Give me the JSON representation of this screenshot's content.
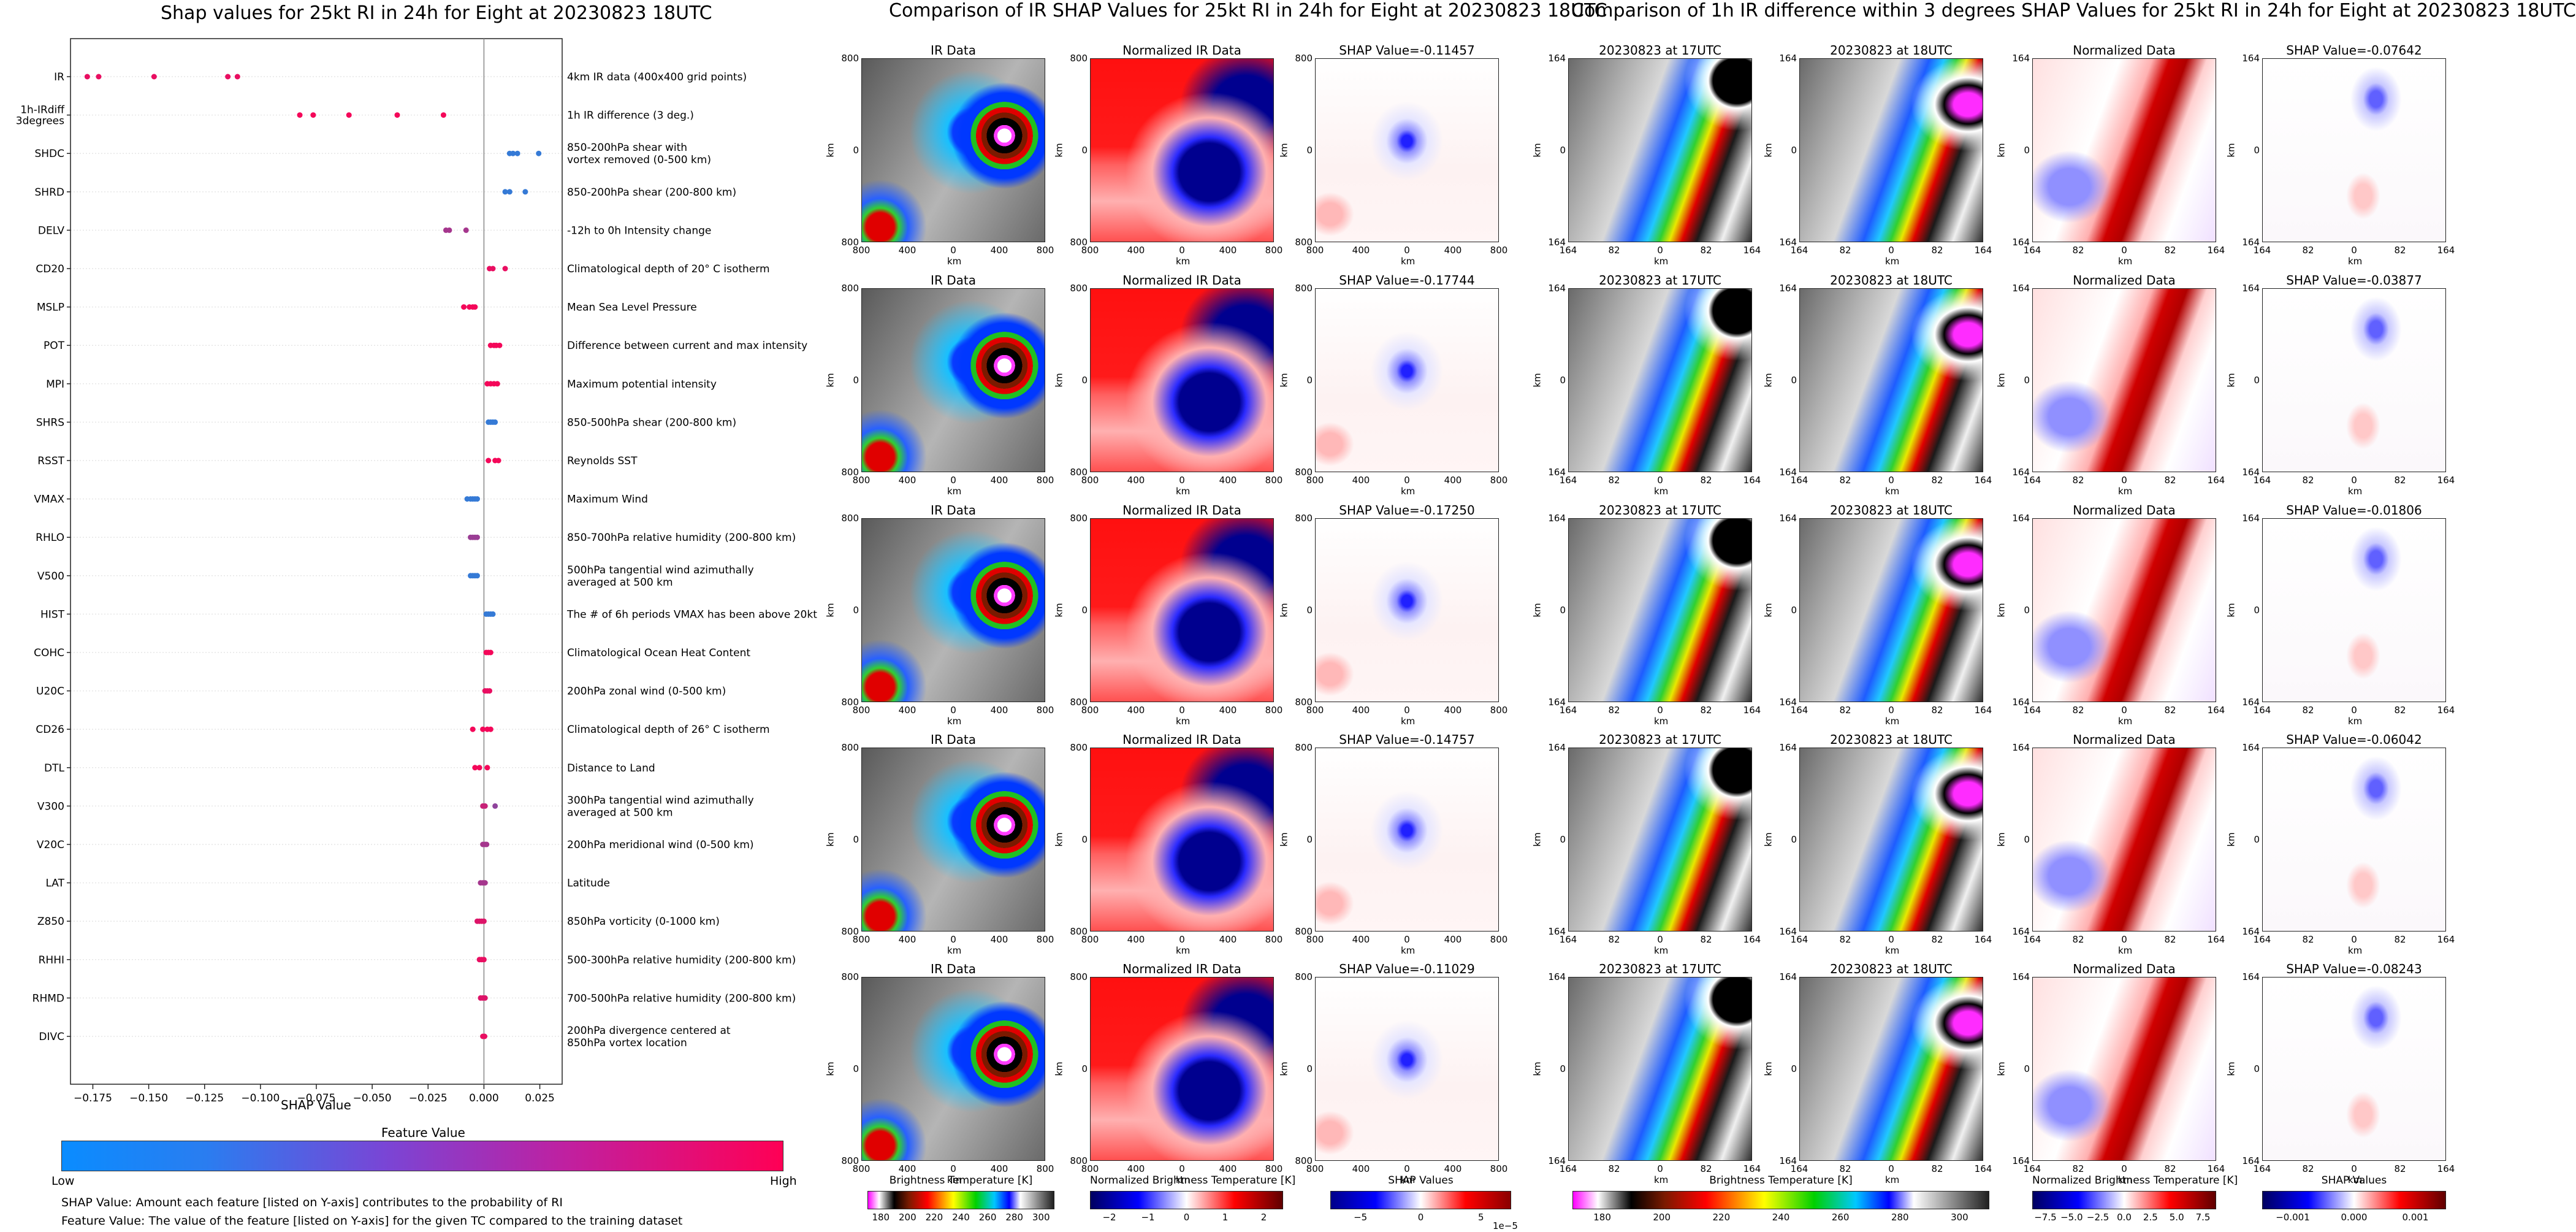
{
  "shap_title": "Shap values for 25kt RI in 24h for Eight at 20230823 18UTC",
  "ir_title": "Comparison of IR SHAP Values for 25kt RI in 24h for Eight at 20230823 18UTC",
  "diff_title": "Comparison of 1h IR difference within 3 degrees SHAP Values for 25kt RI in 24h for Eight at 20230823 18UTC",
  "shap_xlabel": "SHAP Value",
  "feature_value_title": "Feature Value",
  "low_label": "Low",
  "high_label": "High",
  "note1": "SHAP Value: Amount each feature [listed on Y-axis] contributes to the probability of RI",
  "note2": "Feature Value: The value of the feature [listed on Y-axis] for the given TC compared to the training dataset",
  "ir_panel_titles": [
    "IR Data",
    "Normalized IR Data"
  ],
  "ir_shap_titles": [
    "SHAP Value=-0.11457",
    "SHAP Value=-0.17744",
    "SHAP Value=-0.17250",
    "SHAP Value=-0.14757",
    "SHAP Value=-0.11029"
  ],
  "diff_panel_titles": [
    "20230823 at 17UTC",
    "20230823 at 18UTC",
    "Normalized Data"
  ],
  "diff_shap_titles": [
    "SHAP Value=-0.07642",
    "SHAP Value=-0.03877",
    "SHAP Value=-0.01806",
    "SHAP Value=-0.06042",
    "SHAP Value=-0.08243"
  ],
  "axis_label_km": "km",
  "ir_ticks": [
    "800",
    "400",
    "0",
    "400",
    "800"
  ],
  "diff_ticks": [
    "164",
    "82",
    "0",
    "82",
    "164"
  ],
  "colorbars": [
    {
      "title": "Brightness Temperature [K]",
      "ticks": [
        "180",
        "200",
        "220",
        "240",
        "260",
        "280",
        "300"
      ]
    },
    {
      "title": "Normalized Brightness Temperature [K]",
      "ticks": [
        "−2",
        "−1",
        "0",
        "1",
        "2"
      ]
    },
    {
      "title": "SHAP Values",
      "ticks": [
        "−5",
        "0",
        "5"
      ],
      "exponent": "1e−5"
    },
    {
      "title": "Brightness Temperature [K]",
      "ticks": [
        "180",
        "200",
        "220",
        "240",
        "260",
        "280",
        "300"
      ]
    },
    {
      "title": "Normalized Brightness Temperature [K]",
      "ticks": [
        "−7.5",
        "−5.0",
        "−2.5",
        "0.0",
        "2.5",
        "5.0",
        "7.5"
      ]
    },
    {
      "title": "SHAP Values",
      "ticks": [
        "−0.001",
        "0.000",
        "0.001"
      ]
    }
  ],
  "chart_data": {
    "type": "scatter",
    "title": "Shap values for 25kt RI in 24h for Eight at 20230823 18UTC",
    "xlabel": "SHAP Value",
    "xlim": [
      -0.185,
      0.035
    ],
    "xticks": [
      "−0.175",
      "−0.150",
      "−0.125",
      "−0.100",
      "−0.075",
      "−0.050",
      "−0.025",
      "0.000",
      "0.025"
    ],
    "xtick_values": [
      -0.175,
      -0.15,
      -0.125,
      -0.1,
      -0.075,
      -0.05,
      -0.025,
      0.0,
      0.025
    ],
    "color_low": "#1e88e5",
    "color_high": "#ff0052",
    "features": [
      {
        "name": "IR",
        "desc": "4km IR data (400x400 grid points)",
        "points": [
          [
            -0.1775,
            0.9
          ],
          [
            -0.1724,
            0.9
          ],
          [
            -0.1476,
            0.9
          ],
          [
            -0.1146,
            0.9
          ],
          [
            -0.1103,
            0.9
          ]
        ]
      },
      {
        "name": "1h-IRdiff\n3degrees",
        "desc": "1h IR difference (3 deg.)",
        "points": [
          [
            -0.0824,
            0.95
          ],
          [
            -0.0764,
            0.95
          ],
          [
            -0.0604,
            0.95
          ],
          [
            -0.0388,
            0.95
          ],
          [
            -0.0181,
            0.95
          ]
        ]
      },
      {
        "name": "SHDC",
        "desc": "850-200hPa shear with\nvortex removed (0-500 km)",
        "points": [
          [
            0.0115,
            0.1
          ],
          [
            0.013,
            0.1
          ],
          [
            0.015,
            0.1
          ],
          [
            0.0245,
            0.1
          ]
        ]
      },
      {
        "name": "SHRD",
        "desc": "850-200hPa shear (200-800 km)",
        "points": [
          [
            0.0095,
            0.1
          ],
          [
            0.0115,
            0.1
          ],
          [
            0.0185,
            0.1
          ]
        ]
      },
      {
        "name": "DELV",
        "desc": "-12h to 0h Intensity change",
        "points": [
          [
            -0.017,
            0.6
          ],
          [
            -0.0155,
            0.6
          ],
          [
            -0.008,
            0.6
          ]
        ]
      },
      {
        "name": "CD20",
        "desc": "Climatological depth of 20° C isotherm",
        "points": [
          [
            0.0025,
            0.9
          ],
          [
            0.004,
            0.9
          ],
          [
            0.0095,
            0.9
          ]
        ]
      },
      {
        "name": "MSLP",
        "desc": "Mean Sea Level Pressure",
        "points": [
          [
            -0.009,
            0.95
          ],
          [
            -0.0065,
            0.95
          ],
          [
            -0.005,
            0.95
          ],
          [
            -0.004,
            0.95
          ]
        ]
      },
      {
        "name": "POT",
        "desc": "Difference between current and max intensity",
        "points": [
          [
            0.003,
            0.95
          ],
          [
            0.0045,
            0.95
          ],
          [
            0.0055,
            0.95
          ],
          [
            0.007,
            0.95
          ]
        ]
      },
      {
        "name": "MPI",
        "desc": "Maximum potential intensity",
        "points": [
          [
            0.0015,
            0.95
          ],
          [
            0.003,
            0.95
          ],
          [
            0.0045,
            0.95
          ],
          [
            0.006,
            0.95
          ]
        ]
      },
      {
        "name": "SHRS",
        "desc": "850-500hPa shear (200-800 km)",
        "points": [
          [
            0.002,
            0.1
          ],
          [
            0.003,
            0.1
          ],
          [
            0.004,
            0.1
          ],
          [
            0.005,
            0.1
          ]
        ]
      },
      {
        "name": "RSST",
        "desc": "Reynolds SST",
        "points": [
          [
            0.002,
            0.95
          ],
          [
            0.005,
            0.95
          ],
          [
            0.0065,
            0.95
          ]
        ]
      },
      {
        "name": "VMAX",
        "desc": "Maximum Wind",
        "points": [
          [
            -0.0075,
            0.1
          ],
          [
            -0.006,
            0.1
          ],
          [
            -0.005,
            0.1
          ],
          [
            -0.004,
            0.1
          ],
          [
            -0.003,
            0.1
          ]
        ]
      },
      {
        "name": "RHLO",
        "desc": "850-700hPa relative humidity (200-800 km)",
        "points": [
          [
            -0.006,
            0.55
          ],
          [
            -0.005,
            0.55
          ],
          [
            -0.004,
            0.55
          ],
          [
            -0.003,
            0.55
          ]
        ]
      },
      {
        "name": "V500",
        "desc": "500hPa tangential wind azimuthally\naveraged at 500 km",
        "points": [
          [
            -0.006,
            0.1
          ],
          [
            -0.005,
            0.1
          ],
          [
            -0.004,
            0.1
          ],
          [
            -0.003,
            0.1
          ]
        ]
      },
      {
        "name": "HIST",
        "desc": "The # of 6h periods VMAX has been above 20kt",
        "points": [
          [
            0.001,
            0.1
          ],
          [
            0.002,
            0.1
          ],
          [
            0.003,
            0.1
          ],
          [
            0.004,
            0.1
          ]
        ]
      },
      {
        "name": "COHC",
        "desc": "Climatological Ocean Heat Content",
        "points": [
          [
            0.001,
            0.95
          ],
          [
            0.002,
            0.95
          ],
          [
            0.003,
            0.95
          ]
        ]
      },
      {
        "name": "U20C",
        "desc": "200hPa zonal wind (0-500 km)",
        "points": [
          [
            0.0005,
            0.9
          ],
          [
            0.0015,
            0.9
          ],
          [
            0.0025,
            0.9
          ]
        ]
      },
      {
        "name": "CD26",
        "desc": "Climatological depth of 26° C isotherm",
        "points": [
          [
            -0.005,
            0.95
          ],
          [
            -0.0005,
            0.95
          ],
          [
            0.0015,
            0.95
          ],
          [
            0.003,
            0.95
          ]
        ]
      },
      {
        "name": "DTL",
        "desc": "Distance to Land",
        "points": [
          [
            -0.004,
            0.95
          ],
          [
            -0.002,
            0.95
          ],
          [
            0.0015,
            0.95
          ]
        ]
      },
      {
        "name": "V300",
        "desc": "300hPa tangential wind azimuthally\naveraged at 500 km",
        "points": [
          [
            -0.0005,
            0.75
          ],
          [
            0.0005,
            0.75
          ],
          [
            0.005,
            0.5
          ]
        ]
      },
      {
        "name": "V20C",
        "desc": "200hPa meridional wind (0-500 km)",
        "points": [
          [
            -0.0005,
            0.6
          ],
          [
            0.0005,
            0.6
          ],
          [
            0.0012,
            0.6
          ]
        ]
      },
      {
        "name": "LAT",
        "desc": "Latitude",
        "points": [
          [
            -0.0015,
            0.6
          ],
          [
            -0.0005,
            0.6
          ],
          [
            0.0005,
            0.6
          ]
        ]
      },
      {
        "name": "Z850",
        "desc": "850hPa vorticity (0-1000 km)",
        "points": [
          [
            -0.003,
            0.85
          ],
          [
            -0.002,
            0.85
          ],
          [
            -0.001,
            0.85
          ],
          [
            0.0,
            0.85
          ]
        ]
      },
      {
        "name": "RHHI",
        "desc": "500-300hPa relative humidity (200-800 km)",
        "points": [
          [
            -0.002,
            0.9
          ],
          [
            -0.001,
            0.9
          ],
          [
            0.0,
            0.9
          ]
        ]
      },
      {
        "name": "RHMD",
        "desc": "700-500hPa relative humidity (200-800 km)",
        "points": [
          [
            -0.0015,
            0.85
          ],
          [
            -0.0005,
            0.85
          ],
          [
            0.0005,
            0.85
          ]
        ]
      },
      {
        "name": "DIVC",
        "desc": "200hPa divergence centered at\n850hPa vortex location",
        "points": [
          [
            -0.0005,
            0.9
          ],
          [
            0.0003,
            0.9
          ]
        ]
      }
    ]
  }
}
